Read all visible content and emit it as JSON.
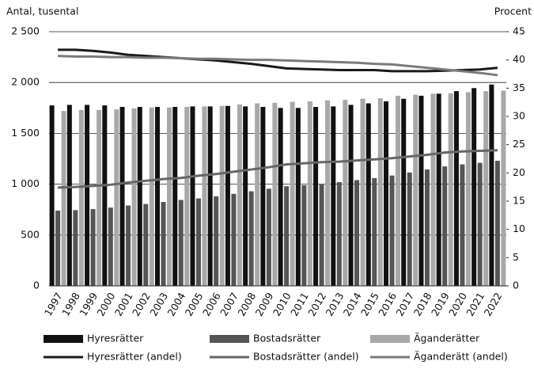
{
  "chart_data": {
    "type": "bar",
    "y_label": "Antal, tusental",
    "y2_label": "Procent",
    "categories": [
      "1997",
      "1998",
      "1999",
      "2000",
      "2001",
      "2002",
      "2003",
      "2004",
      "2005",
      "2006",
      "2007",
      "2008",
      "2009",
      "2010",
      "2011",
      "2012",
      "2013",
      "2014",
      "2015",
      "2016",
      "2017",
      "2018",
      "2019",
      "2020",
      "2021",
      "2022"
    ],
    "ylim": [
      0,
      2500
    ],
    "yticks": [
      0,
      500,
      {
        "value": 1000,
        "label": "1 000"
      },
      {
        "value": 1500,
        "label": "1 500"
      },
      {
        "value": 2000,
        "label": "2 000"
      },
      {
        "value": 2500,
        "label": "2 500"
      }
    ],
    "y2lim": [
      0,
      45
    ],
    "y2ticks": [
      0,
      5,
      10,
      15,
      20,
      25,
      30,
      35,
      40,
      45
    ],
    "grid": true,
    "series": [
      {
        "name": "Hyresrätter",
        "type": "bar",
        "color": "#111111",
        "values": [
          1775,
          1780,
          1780,
          1775,
          1760,
          1760,
          1760,
          1760,
          1765,
          1765,
          1770,
          1765,
          1760,
          1750,
          1750,
          1760,
          1765,
          1780,
          1795,
          1815,
          1840,
          1870,
          1890,
          1915,
          1945,
          1980
        ]
      },
      {
        "name": "Bostadsrätter",
        "type": "bar",
        "color": "#555555",
        "values": [
          740,
          745,
          755,
          770,
          790,
          805,
          825,
          845,
          860,
          880,
          905,
          930,
          955,
          980,
          990,
          1000,
          1020,
          1040,
          1060,
          1085,
          1115,
          1145,
          1175,
          1195,
          1210,
          1230
        ]
      },
      {
        "name": "Äganderätter",
        "type": "bar",
        "color": "#a8a8a8",
        "values": [
          1720,
          1730,
          1730,
          1735,
          1745,
          1755,
          1755,
          1760,
          1765,
          1770,
          1785,
          1795,
          1800,
          1810,
          1815,
          1825,
          1830,
          1840,
          1845,
          1870,
          1880,
          1890,
          1895,
          1905,
          1915,
          1920
        ]
      },
      {
        "name": "Hyresrätter (andel)",
        "type": "line",
        "axis": "y2",
        "color": "#1a1a1a",
        "values": [
          41.8,
          41.8,
          41.6,
          41.3,
          40.9,
          40.7,
          40.5,
          40.3,
          40.1,
          39.9,
          39.6,
          39.3,
          38.9,
          38.5,
          38.4,
          38.3,
          38.2,
          38.2,
          38.2,
          38.0,
          38.0,
          38.0,
          38.1,
          38.2,
          38.3,
          38.6
        ]
      },
      {
        "name": "Bostadsrätter (andel)",
        "type": "line",
        "axis": "y2",
        "color": "#666666",
        "values": [
          17.4,
          17.5,
          17.7,
          17.9,
          18.3,
          18.6,
          18.9,
          19.1,
          19.5,
          19.8,
          20.2,
          20.6,
          21.0,
          21.5,
          21.7,
          21.9,
          22.0,
          22.2,
          22.4,
          22.6,
          22.9,
          23.2,
          23.6,
          23.8,
          23.9,
          24.0
        ]
      },
      {
        "name": "Äganderätt (andel)",
        "type": "line",
        "axis": "y2",
        "color": "#7a7a7a",
        "values": [
          40.7,
          40.6,
          40.6,
          40.5,
          40.5,
          40.4,
          40.4,
          40.3,
          40.2,
          40.2,
          40.1,
          40.0,
          40.0,
          39.9,
          39.8,
          39.7,
          39.6,
          39.5,
          39.3,
          39.2,
          38.9,
          38.6,
          38.3,
          38.0,
          37.7,
          37.3
        ]
      }
    ]
  }
}
